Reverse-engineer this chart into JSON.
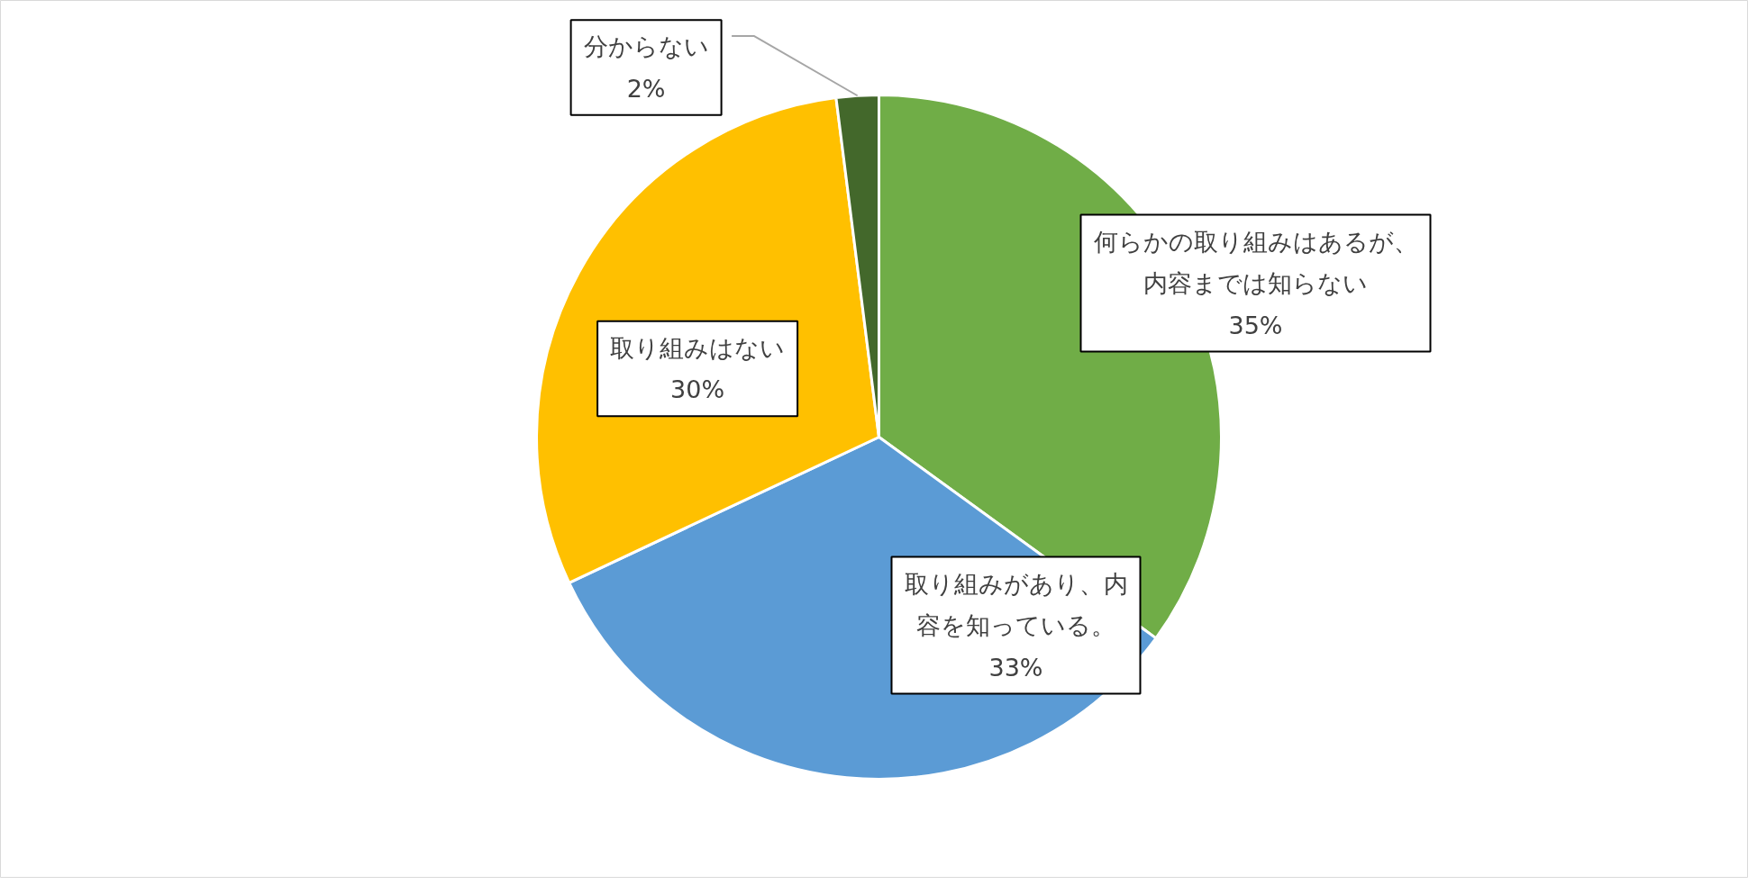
{
  "chart_data": {
    "type": "pie",
    "categories": [
      "何らかの取り組みはあるが、内容までは知らない",
      "取り組みがあり、内容を知っている。",
      "取り組みはない",
      "分からない"
    ],
    "values": [
      35,
      33,
      30,
      2
    ],
    "value_labels": [
      "35%",
      "33%",
      "30%",
      "2%"
    ],
    "colors": [
      "#70ad47",
      "#5b9bd5",
      "#ffc000",
      "#43682b"
    ]
  }
}
